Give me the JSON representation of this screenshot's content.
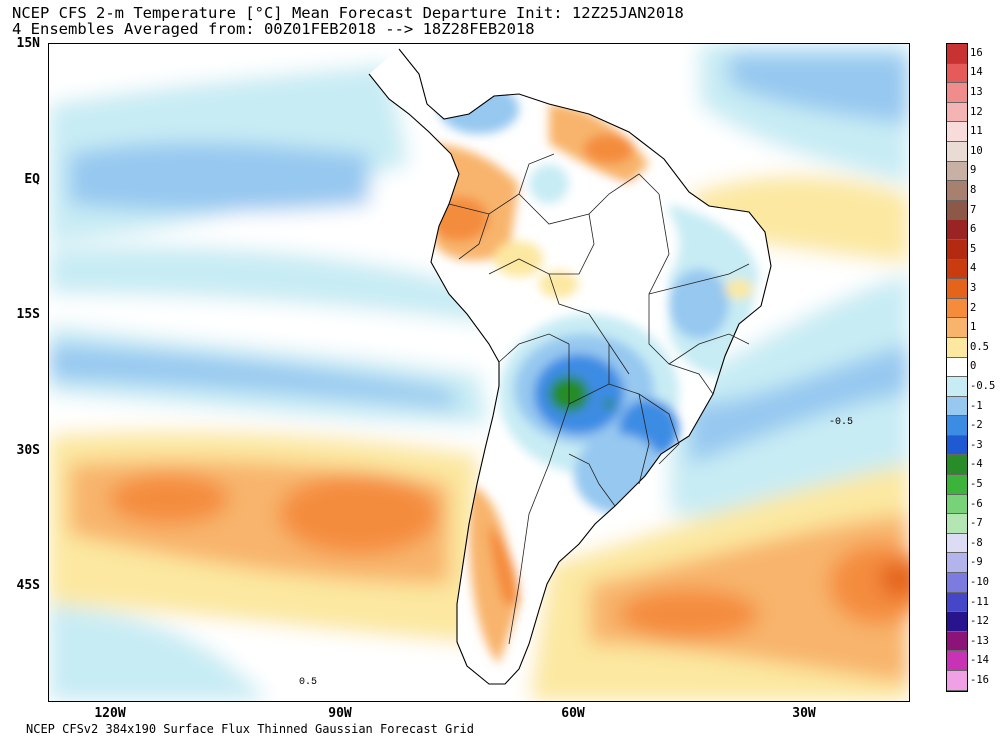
{
  "header": {
    "title_line1": "NCEP CFS 2-m Temperature [°C] Mean Forecast Departure Init: 12Z25JAN2018",
    "title_line2": "4 Ensembles Averaged from: 00Z01FEB2018 --> 18Z28FEB2018"
  },
  "footer": {
    "text": "NCEP CFSv2 384x190 Surface Flux Thinned Gaussian Forecast Grid"
  },
  "axes": {
    "lat_labels": [
      "15N",
      "EQ",
      "15S",
      "30S",
      "45S"
    ],
    "lon_labels": [
      "120W",
      "90W",
      "60W",
      "30W"
    ]
  },
  "colorbar": {
    "labels": [
      "16",
      "14",
      "13",
      "12",
      "11",
      "10",
      "9",
      "8",
      "7",
      "6",
      "5",
      "4",
      "3",
      "2",
      "1",
      "0.5",
      "0",
      "-0.5",
      "-1",
      "-2",
      "-3",
      "-4",
      "-5",
      "-6",
      "-7",
      "-8",
      "-9",
      "-10",
      "-11",
      "-12",
      "-13",
      "-14",
      "-16"
    ],
    "colors": [
      "#c83232",
      "#e65a5a",
      "#f08c8c",
      "#f4b4b4",
      "#f8dcdc",
      "#e8dcd4",
      "#c8b0a4",
      "#a88070",
      "#8c5848",
      "#9a2424",
      "#b42a10",
      "#c83c10",
      "#e4641c",
      "#f48c3c",
      "#f8b46c",
      "#fce8a0",
      "#ffffff",
      "#c8ecf4",
      "#96c8f0",
      "#3c8ce4",
      "#1e5ad2",
      "#288c28",
      "#3cb43c",
      "#78d278",
      "#b4e6b4",
      "#dcdcf4",
      "#b4b4ec",
      "#7c7ce0",
      "#4646c8",
      "#28148c",
      "#8c1478",
      "#c832b4",
      "#f0a0e4"
    ]
  },
  "map_labels": {
    "anomaly_classes": [
      "0",
      "0.5",
      "1",
      "-0.5",
      "-1",
      "-2",
      "-3"
    ]
  }
}
